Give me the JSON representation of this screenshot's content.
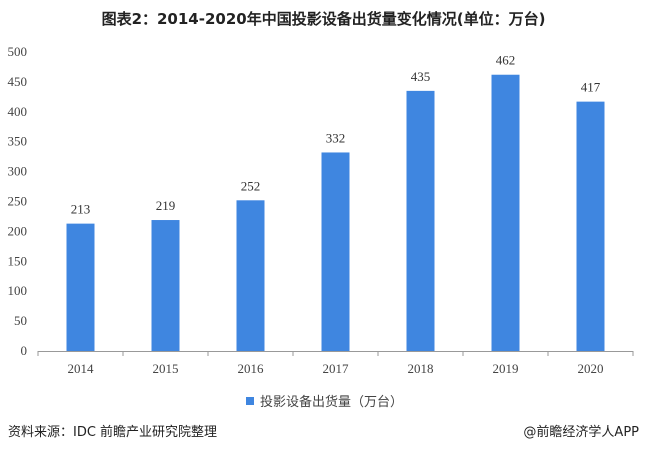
{
  "title": "图表2：2014-2020年中国投影设备出货量变化情况(单位：万台)",
  "footer": {
    "source": "资料来源：IDC 前瞻产业研究院整理",
    "brand": "@前瞻经济学人APP"
  },
  "colors": {
    "bar": "#3f86e0",
    "axis": "#999999"
  },
  "chart_data": {
    "type": "bar",
    "categories": [
      "2014",
      "2015",
      "2016",
      "2017",
      "2018",
      "2019",
      "2020"
    ],
    "series": [
      {
        "name": "投影设备出货量（万台）",
        "values": [
          213,
          219,
          252,
          332,
          435,
          462,
          417
        ]
      }
    ],
    "ylim": [
      0,
      500
    ],
    "yticks": [
      0,
      50,
      100,
      150,
      200,
      250,
      300,
      350,
      400,
      450,
      500
    ],
    "grid": false,
    "legend": "bottom-center",
    "data_labels": true
  }
}
